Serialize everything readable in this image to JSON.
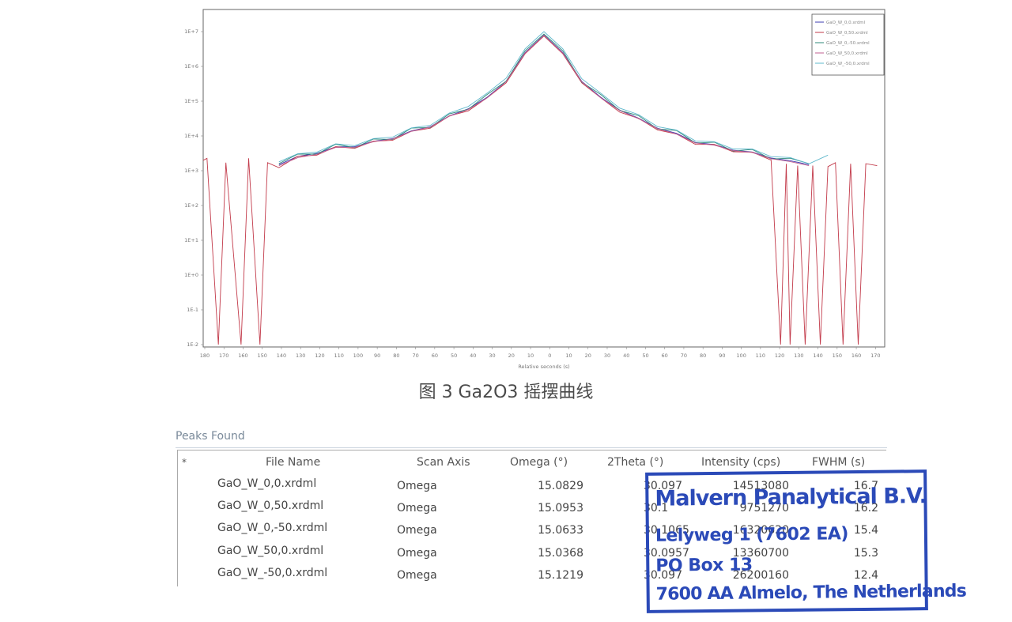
{
  "figure": {
    "caption": "图 3 Ga2O3 摇摆曲线"
  },
  "chart_data": {
    "type": "line",
    "title": "",
    "xlabel": "Relative seconds (s)",
    "ylabel": "",
    "y_scale": "log",
    "ylim": [
      0.01,
      10000000
    ],
    "xlim": [
      -180,
      180
    ],
    "y_tick_labels": [
      "1E+7",
      "1E+6",
      "1E+5",
      "1E+4",
      "1E+3",
      "1E+2",
      "1E+1",
      "1E+0",
      "1E-1",
      "1E-2"
    ],
    "x_tick_labels": [
      "180",
      "170",
      "160",
      "150",
      "140",
      "130",
      "120",
      "110",
      "100",
      "90",
      "80",
      "70",
      "60",
      "50",
      "40",
      "30",
      "20",
      "10",
      "0",
      "10",
      "20",
      "30",
      "40",
      "50",
      "60",
      "70",
      "80",
      "90",
      "100",
      "110",
      "120",
      "130",
      "140",
      "150",
      "160",
      "170"
    ],
    "grid": false,
    "legend_position": "top-right",
    "series": [
      {
        "name": "GaO_W_0,0.xrdml",
        "color": "#3b3bb0",
        "x": [
          -140,
          -130,
          -120,
          -110,
          -100,
          -90,
          -80,
          -70,
          -60,
          -50,
          -40,
          -30,
          -20,
          -10,
          0,
          10,
          20,
          30,
          40,
          50,
          60,
          70,
          80,
          90,
          100,
          110,
          120,
          130,
          140
        ],
        "y": [
          1500,
          2400,
          3400,
          4500,
          5300,
          6500,
          9000,
          13000,
          20000,
          35000,
          65000,
          120000,
          400000,
          2500000,
          8000000,
          2500000,
          400000,
          120000,
          60000,
          30000,
          18000,
          11000,
          7000,
          5200,
          4200,
          3200,
          2500,
          1800,
          1500
        ]
      },
      {
        "name": "GaO_W_0,50.xrdml",
        "color": "#c23a4a",
        "x": [
          -180,
          -178,
          -172,
          -168,
          -160,
          -156,
          -150,
          -146,
          -140,
          -130,
          -120,
          -110,
          -100,
          -90,
          -80,
          -70,
          -60,
          -50,
          -40,
          -30,
          -20,
          -10,
          0,
          10,
          20,
          30,
          40,
          50,
          60,
          70,
          80,
          90,
          100,
          110,
          120,
          125,
          128,
          130,
          134,
          138,
          142,
          146,
          150,
          154,
          158,
          162,
          166,
          170,
          176
        ],
        "y": [
          2000,
          2000,
          0.01,
          1500,
          0.01,
          2000,
          0.01,
          1500,
          1400,
          2300,
          3200,
          4300,
          5000,
          6200,
          8500,
          12000,
          19000,
          33000,
          60000,
          110000,
          380000,
          2300000,
          7500000,
          2300000,
          380000,
          110000,
          55000,
          28000,
          17000,
          10000,
          6500,
          5000,
          4000,
          3000,
          2300,
          0.01,
          1800,
          0.01,
          1600,
          0.01,
          1600,
          0.01,
          1500,
          1500,
          0.01,
          1400,
          0.01,
          1400,
          1400
        ]
      },
      {
        "name": "GaO_W_0,-50.xrdml",
        "color": "#2e8a7a",
        "x": [
          -140,
          -130,
          -120,
          -110,
          -100,
          -90,
          -80,
          -70,
          -60,
          -50,
          -40,
          -30,
          -20,
          -10,
          0,
          10,
          20,
          30,
          40,
          50,
          60,
          70,
          80,
          90,
          100,
          110,
          120,
          130,
          140
        ],
        "y": [
          1600,
          2500,
          3600,
          4800,
          5500,
          6800,
          9500,
          14000,
          21000,
          36000,
          70000,
          130000,
          450000,
          2800000,
          8500000,
          2800000,
          420000,
          130000,
          65000,
          32000,
          19000,
          12000,
          7500,
          5500,
          4400,
          3400,
          2600,
          1900,
          1600
        ]
      },
      {
        "name": "GaO_W_50,0.xrdml",
        "color": "#c06090",
        "x": [
          -140,
          -130,
          -120,
          -110,
          -100,
          -90,
          -80,
          -70,
          -60,
          -50,
          -40,
          -30,
          -20,
          -10,
          0,
          10,
          20,
          30,
          40,
          50,
          60,
          70,
          80,
          90,
          100,
          110,
          120,
          130,
          140
        ],
        "y": [
          1400,
          2200,
          3200,
          4300,
          5100,
          6300,
          8800,
          12500,
          19500,
          34000,
          62000,
          115000,
          390000,
          2400000,
          7800000,
          2400000,
          390000,
          115000,
          58000,
          29000,
          17500,
          10500,
          6800,
          5000,
          4100,
          3100,
          2400,
          1700,
          1400
        ]
      },
      {
        "name": "GaO_W_-50,0.xrdml",
        "color": "#5fb8cc",
        "x": [
          -140,
          -130,
          -120,
          -110,
          -100,
          -90,
          -80,
          -70,
          -60,
          -50,
          -40,
          -30,
          -20,
          -10,
          0,
          10,
          20,
          30,
          40,
          50,
          60,
          70,
          80,
          90,
          100,
          110,
          120,
          130,
          140,
          150
        ],
        "y": [
          1800,
          2700,
          3900,
          5200,
          6000,
          7400,
          10500,
          15000,
          23000,
          40000,
          80000,
          150000,
          520000,
          3200000,
          10000000,
          3200000,
          500000,
          150000,
          72000,
          36000,
          21000,
          13000,
          8200,
          6000,
          4800,
          3700,
          2900,
          2100,
          1800,
          2800
        ]
      }
    ]
  },
  "peaks": {
    "title": "Peaks Found",
    "star": "*",
    "columns": [
      "File Name",
      "Scan Axis",
      "Omega (°)",
      "2Theta (°)",
      "Intensity (cps)",
      "FWHM (s)"
    ],
    "rows": [
      [
        "GaO_W_0,0.xrdml",
        "Omega",
        "15.0829",
        "30.097",
        "14513080",
        "16.7"
      ],
      [
        "GaO_W_0,50.xrdml",
        "Omega",
        "15.0953",
        "30.1",
        "9751270",
        "16.2"
      ],
      [
        "GaO_W_0,-50.xrdml",
        "Omega",
        "15.0633",
        "30.1065",
        "16320620",
        "15.4"
      ],
      [
        "GaO_W_50,0.xrdml",
        "Omega",
        "15.0368",
        "30.0957",
        "13360700",
        "15.3"
      ],
      [
        "GaO_W_-50,0.xrdml",
        "Omega",
        "15.1219",
        "30.097",
        "26200160",
        "12.4"
      ]
    ]
  },
  "stamp": {
    "line1": "Malvern Panalytical B.V.",
    "line2": "Lelyweg 1 (7602 EA)",
    "line3": "PO Box 13",
    "line4": "7600 AA Almelo, The Netherlands",
    "color": "#2b4ab8"
  }
}
